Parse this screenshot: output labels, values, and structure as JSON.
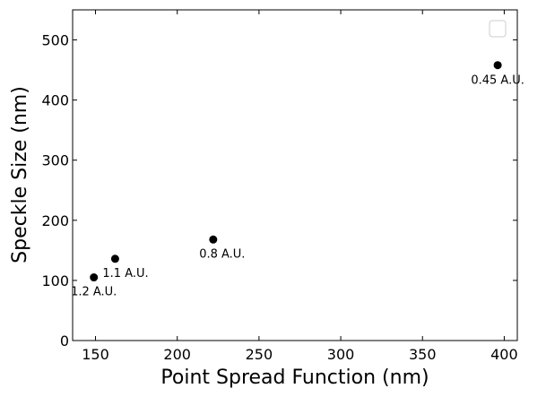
{
  "chart_data": {
    "type": "scatter",
    "xlabel": "Point Spread Function (nm)",
    "ylabel": "Speckle Size (nm)",
    "xlim": [
      136,
      408
    ],
    "ylim": [
      0,
      550
    ],
    "xticks": [
      150,
      200,
      250,
      300,
      350,
      400
    ],
    "yticks": [
      0,
      100,
      200,
      300,
      400,
      500
    ],
    "xtick_labels": [
      "150",
      "200",
      "250",
      "300",
      "350",
      "400"
    ],
    "ytick_labels": [
      "0",
      "100",
      "200",
      "300",
      "400",
      "500"
    ],
    "grid": false,
    "legend": "top-right",
    "legend_entries": [],
    "series": [
      {
        "color": "#000000",
        "points": [
          {
            "x": 149,
            "y": 105,
            "label": "1.2 A.U."
          },
          {
            "x": 162,
            "y": 136,
            "label": "1.1 A.U."
          },
          {
            "x": 222,
            "y": 168,
            "label": "0.8 A.U."
          },
          {
            "x": 396,
            "y": 458,
            "label": "0.45 A.U."
          }
        ]
      }
    ]
  }
}
